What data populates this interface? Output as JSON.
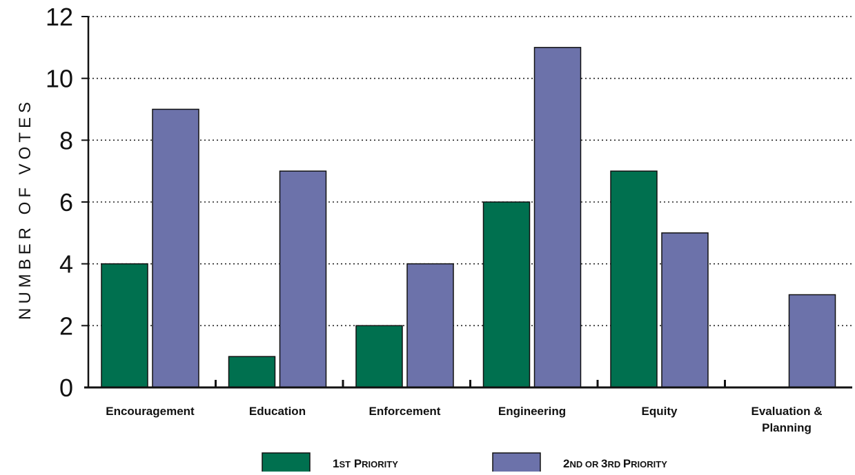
{
  "chart_data": {
    "type": "bar",
    "title": "",
    "xlabel": "",
    "ylabel": "NUMBER OF VOTES",
    "ylim": [
      0,
      12
    ],
    "yticks": [
      0,
      2,
      4,
      6,
      8,
      10,
      12
    ],
    "grid": "horizontal-dotted",
    "legend_position": "bottom",
    "categories": [
      [
        "Encouragement"
      ],
      [
        "Education"
      ],
      [
        "Enforcement"
      ],
      [
        "Engineering"
      ],
      [
        "Equity"
      ],
      [
        "Evaluation &",
        "Planning"
      ]
    ],
    "series": [
      {
        "name": "1ST PRIORITY",
        "legend_parts": [
          [
            "1",
            "big"
          ],
          [
            "ST",
            "small"
          ],
          [
            " P",
            "big"
          ],
          [
            "RIORITY",
            "small"
          ]
        ],
        "color": "#00704f",
        "values": [
          4,
          1,
          2,
          6,
          7,
          0
        ]
      },
      {
        "name": "2ND OR 3RD PRIORITY",
        "legend_parts": [
          [
            "2",
            "big"
          ],
          [
            "ND OR ",
            "small"
          ],
          [
            "3",
            "big"
          ],
          [
            "RD ",
            "small"
          ],
          [
            "P",
            "big"
          ],
          [
            "RIORITY",
            "small"
          ]
        ],
        "color": "#6c72aa",
        "values": [
          9,
          7,
          4,
          11,
          5,
          3
        ]
      }
    ]
  }
}
